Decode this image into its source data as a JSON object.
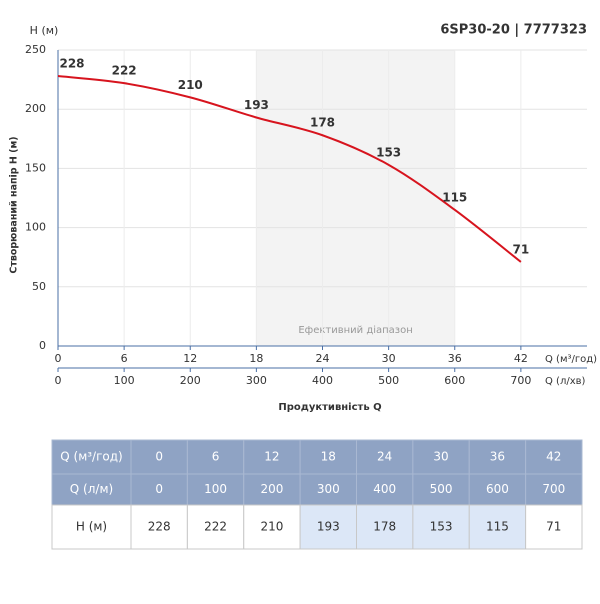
{
  "chart_data": {
    "type": "line",
    "title": "6SP30-20 | 7777323",
    "y_unit_label": "H (м)",
    "ylabel": "Створюваний напір H (м)",
    "xlabel": "Продуктивність Q",
    "x_axis_label": "Q (м³/год)",
    "x2_axis_label": "Q (л/хв)",
    "x": [
      0,
      6,
      12,
      18,
      24,
      30,
      36,
      42
    ],
    "values": [
      228,
      222,
      210,
      193,
      178,
      153,
      115,
      71
    ],
    "color": "#d7141e",
    "xlim": [
      0,
      48
    ],
    "xticks": [
      0,
      6,
      12,
      18,
      24,
      30,
      36,
      42
    ],
    "x2lim": [
      0,
      800
    ],
    "x2ticks": [
      0,
      100,
      200,
      300,
      400,
      500,
      600,
      700
    ],
    "ylim": [
      0,
      250
    ],
    "yticks": [
      0,
      50,
      100,
      150,
      200,
      250
    ],
    "grid": true,
    "shaded_range": [
      18,
      36
    ],
    "shaded_label": "Ефективний діапазон"
  },
  "table": {
    "rows": [
      [
        "Q (м³/год)",
        0,
        6,
        12,
        18,
        24,
        30,
        36,
        42
      ],
      [
        "Q (л/м)",
        0,
        100,
        200,
        300,
        400,
        500,
        600,
        700
      ],
      [
        "H (м)",
        228,
        222,
        210,
        193,
        178,
        153,
        115,
        71
      ]
    ]
  }
}
